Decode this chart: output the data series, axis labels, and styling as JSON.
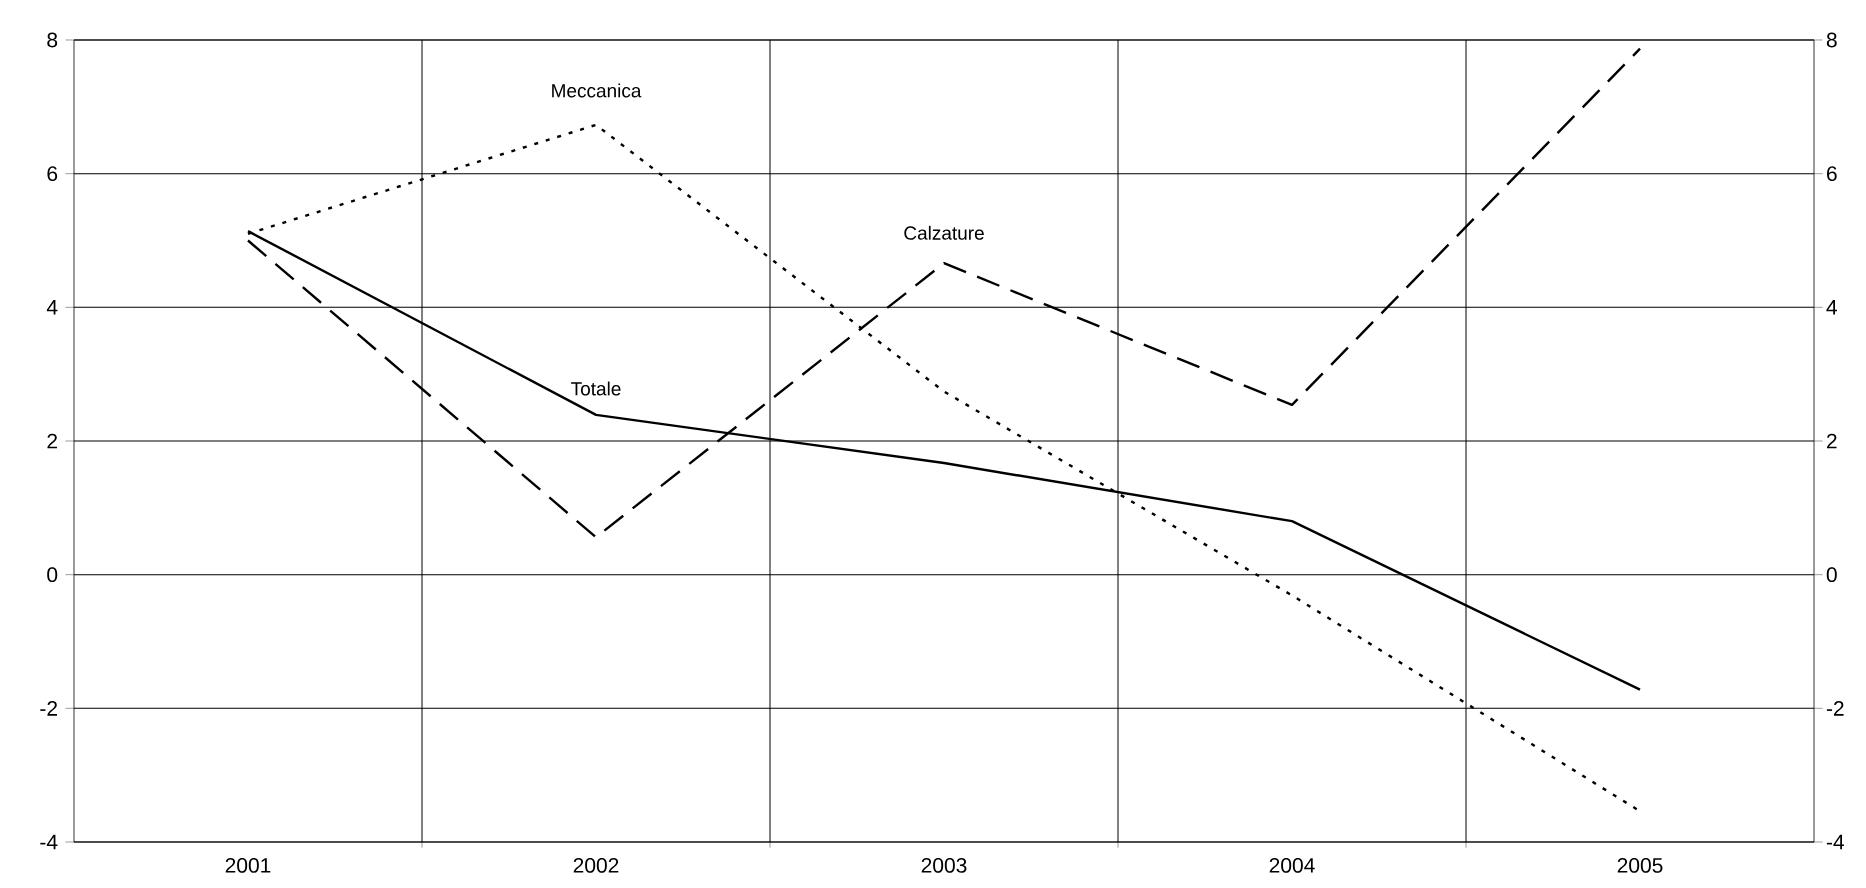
{
  "chart_data": {
    "type": "line",
    "categories": [
      "2001",
      "2002",
      "2003",
      "2004",
      "2005"
    ],
    "series": [
      {
        "name": "Totale",
        "color": "#000000",
        "line_style": "solid",
        "values": [
          5.14,
          2.39,
          1.67,
          0.8,
          -1.72
        ]
      },
      {
        "name": "Meccanica",
        "color": "#000000",
        "line_style": "dotted",
        "values": [
          5.1,
          6.73,
          2.74,
          -0.31,
          -3.54
        ]
      },
      {
        "name": "Calzature",
        "color": "#000000",
        "line_style": "dashed",
        "values": [
          5.0,
          0.56,
          4.66,
          2.54,
          7.87
        ]
      }
    ],
    "ylim": [
      -4,
      8
    ],
    "yticks": [
      -4,
      -2,
      0,
      2,
      4,
      6,
      8
    ],
    "y2lim": [
      -4,
      8
    ],
    "y2ticks": [
      -4,
      -2,
      0,
      2,
      4,
      6,
      8
    ],
    "grid": true,
    "marker": "none"
  }
}
